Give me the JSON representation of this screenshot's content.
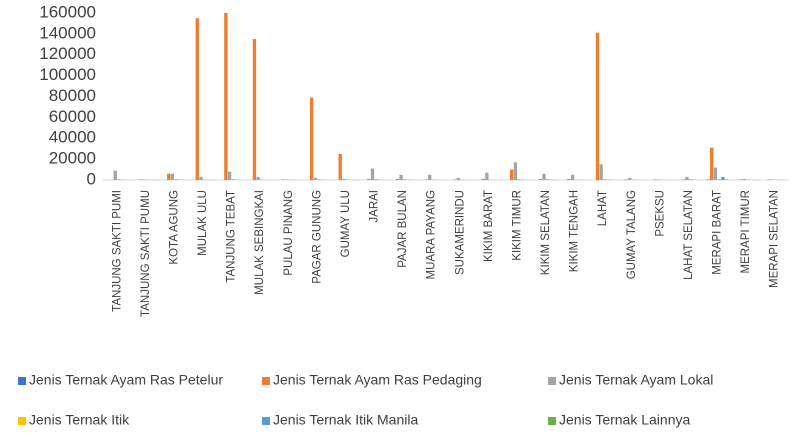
{
  "chart_data": {
    "type": "bar",
    "categories": [
      "TANJUNG SAKTI PUMI",
      "TANJUNG SAKTI PUMU",
      "KOTA AGUNG",
      "MULAK ULU",
      "TANJUNG TEBAT",
      "MULAK SEBINGKAI",
      "PULAU PINANG",
      "PAGAR GUNUNG",
      "GUMAY ULU",
      "JARAI",
      "PAJAR BULAN",
      "MUARA PAYANG",
      "SUKAMERINDU",
      "KIKIM BARAT",
      "KIKIM TIMUR",
      "KIKIM SELATAN",
      "KIKIM TENGAH",
      "LAHAT",
      "GUMAY TALANG",
      "PSEKSU",
      "LAHAT SELATAN",
      "MERAPI BARAT",
      "MERAPI TIMUR",
      "MERAPI SELATAN"
    ],
    "series": [
      {
        "name": "Jenis Ternak Ayam Ras Petelur",
        "color": "#4472c4",
        "values": [
          0,
          0,
          0,
          0,
          0,
          0,
          0,
          0,
          0,
          0,
          0,
          0,
          0,
          0,
          0,
          0,
          0,
          0,
          0,
          0,
          0,
          500,
          0,
          0
        ]
      },
      {
        "name": "Jenis Ternak Ayam Ras Pedaging",
        "color": "#ed7d31",
        "values": [
          0,
          500,
          6000,
          155000,
          160000,
          135000,
          500,
          79000,
          25000,
          1000,
          1000,
          500,
          500,
          1000,
          10000,
          1000,
          1000,
          141000,
          500,
          500,
          500,
          31000,
          500,
          500
        ]
      },
      {
        "name": "Jenis Ternak Ayam Lokal",
        "color": "#a5a5a5",
        "values": [
          9000,
          500,
          6000,
          3000,
          8000,
          3000,
          500,
          2000,
          1000,
          11000,
          5000,
          5000,
          2000,
          7000,
          17000,
          6000,
          5000,
          15000,
          2000,
          500,
          3000,
          12000,
          1000,
          500
        ]
      },
      {
        "name": "Jenis Ternak Itik",
        "color": "#ffc000",
        "values": [
          1000,
          300,
          1000,
          500,
          1000,
          500,
          200,
          1000,
          500,
          1000,
          1000,
          500,
          500,
          500,
          1000,
          1000,
          500,
          1000,
          500,
          200,
          1000,
          1000,
          500,
          300
        ]
      },
      {
        "name": "Jenis Ternak Itik Manila",
        "color": "#5b9bd5",
        "values": [
          200,
          100,
          200,
          100,
          200,
          100,
          100,
          200,
          100,
          200,
          200,
          100,
          100,
          100,
          200,
          200,
          100,
          200,
          100,
          100,
          200,
          3000,
          100,
          100
        ]
      },
      {
        "name": "Jenis Ternak Lainnya",
        "color": "#70ad47",
        "values": [
          100,
          100,
          200,
          100,
          100,
          100,
          100,
          100,
          100,
          100,
          100,
          100,
          100,
          100,
          100,
          100,
          100,
          100,
          100,
          100,
          100,
          500,
          100,
          100
        ]
      }
    ],
    "ylim": [
      0,
      160000
    ],
    "yticks": [
      0,
      20000,
      40000,
      60000,
      80000,
      100000,
      120000,
      140000,
      160000
    ],
    "grid": false,
    "legend": "bottom"
  }
}
